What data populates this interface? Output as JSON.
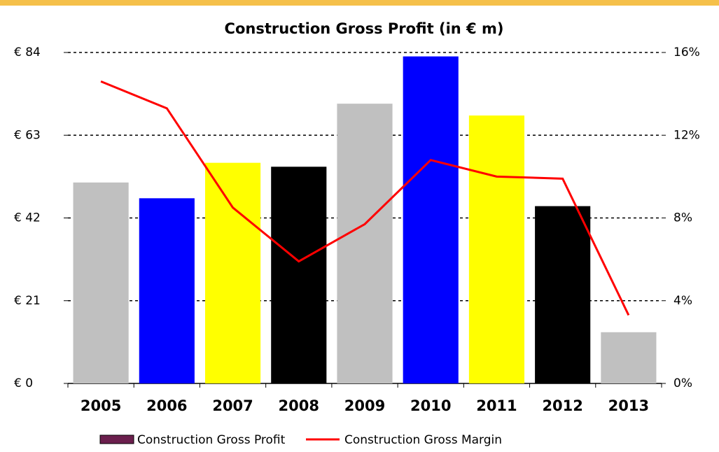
{
  "chart_data": {
    "type": "bar",
    "title": "Construction Gross Profit (in € m)",
    "categories": [
      "2005",
      "2006",
      "2007",
      "2008",
      "2009",
      "2010",
      "2011",
      "2012",
      "2013"
    ],
    "series": [
      {
        "name": "Construction Gross Profit",
        "color": "#6b1f4d",
        "colors": [
          "#c0c0c0",
          "#0000ff",
          "#ffff00",
          "#000000",
          "#c0c0c0",
          "#0000ff",
          "#ffff00",
          "#000000",
          "#c0c0c0"
        ],
        "values": [
          51,
          47,
          56,
          55,
          71,
          83,
          68,
          45,
          13
        ]
      },
      {
        "name": "Construction Gross Margin",
        "type": "line",
        "axis": "y2",
        "color": "#ff0000",
        "values": [
          14.6,
          13.3,
          8.5,
          5.9,
          7.7,
          10.8,
          10.0,
          9.9,
          3.3
        ]
      }
    ],
    "ylim": [
      0,
      84
    ],
    "yticks": [
      {
        "value": 0,
        "label": "€ 0"
      },
      {
        "value": 21,
        "label": "€ 21"
      },
      {
        "value": 42,
        "label": "€ 42"
      },
      {
        "value": 63,
        "label": "€ 63"
      },
      {
        "value": 84,
        "label": "€ 84"
      }
    ],
    "y2lim": [
      0,
      16
    ],
    "y2ticks": [
      {
        "value": 0,
        "label": "0%"
      },
      {
        "value": 4,
        "label": "4%"
      },
      {
        "value": 8,
        "label": "8%"
      },
      {
        "value": 12,
        "label": "12%"
      },
      {
        "value": 16,
        "label": "16%"
      }
    ],
    "grid": true,
    "legend": "bottom"
  }
}
